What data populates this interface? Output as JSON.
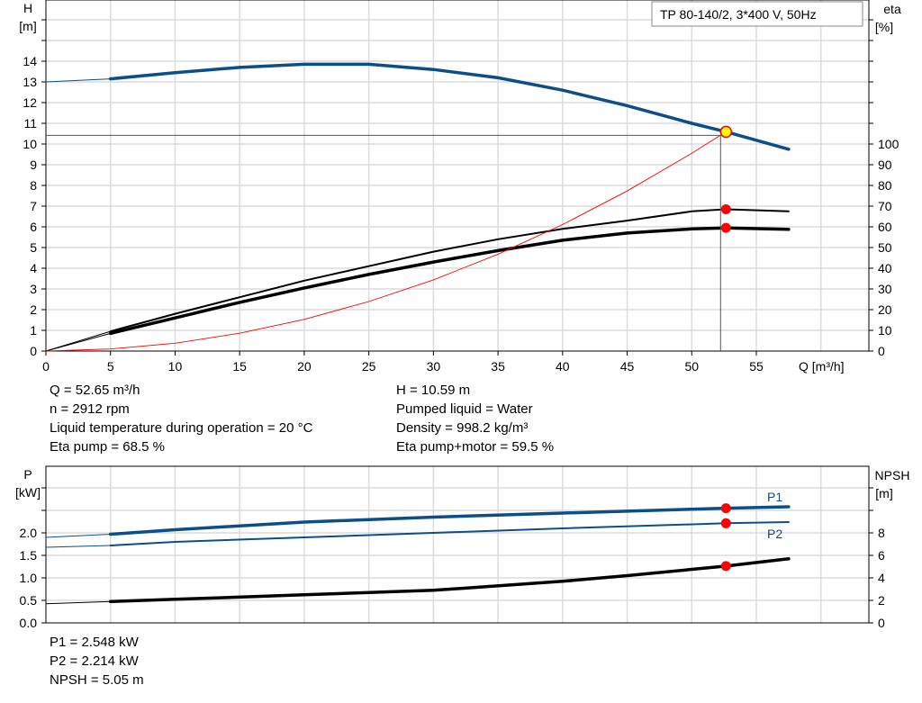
{
  "chart_data": [
    {
      "type": "line",
      "title": "TP 80-140/2, 3*400 V, 50Hz",
      "xlabel": "Q [m³/h]",
      "ylabel_left": [
        "H",
        "[m]"
      ],
      "ylabel_right": [
        "eta",
        "[%]"
      ],
      "xlim": [
        0,
        63
      ],
      "ylim_left": [
        0,
        17
      ],
      "ylim_right": [
        0,
        170
      ],
      "x_ticks": [
        "0",
        "5",
        "10",
        "15",
        "20",
        "25",
        "30",
        "35",
        "40",
        "45",
        "50",
        "55"
      ],
      "y_ticks_left": [
        "0",
        "1",
        "2",
        "3",
        "4",
        "5",
        "6",
        "7",
        "8",
        "9",
        "10",
        "11",
        "12",
        "13",
        "14"
      ],
      "y_ticks_right": [
        "0",
        "10",
        "20",
        "30",
        "40",
        "50",
        "60",
        "70",
        "80",
        "90",
        "100"
      ],
      "grid": true,
      "series": [
        {
          "axis": "left",
          "color": "#0b4f8a",
          "x": [
            0,
            5,
            10,
            15,
            20,
            25,
            30,
            35,
            40,
            45,
            50,
            52.65,
            57.5
          ],
          "y": [
            13.0,
            13.15,
            13.45,
            13.7,
            13.85,
            13.85,
            13.6,
            13.2,
            12.6,
            11.85,
            11.0,
            10.59,
            9.75
          ]
        },
        {
          "axis": "right",
          "color": "#000000",
          "x": [
            0,
            5,
            10,
            15,
            20,
            25,
            30,
            35,
            40,
            45,
            50,
            52.65,
            57.5
          ],
          "y": [
            0,
            9.5,
            18,
            26,
            34,
            41,
            48,
            54,
            59,
            63,
            67.5,
            68.5,
            67.5
          ]
        },
        {
          "axis": "right",
          "color": "#000000",
          "x": [
            0,
            5,
            10,
            15,
            20,
            25,
            30,
            35,
            40,
            45,
            50,
            52.65,
            57.5
          ],
          "y": [
            0,
            8.5,
            16,
            23.5,
            30.5,
            37,
            43,
            48.5,
            53.5,
            57,
            59,
            59.5,
            58.8
          ]
        },
        {
          "axis": "left",
          "color": "#ff0000",
          "x": [
            0,
            5,
            10,
            15,
            20,
            25,
            30,
            35,
            40,
            45,
            50,
            52.65
          ],
          "y": [
            0,
            0.1,
            0.38,
            0.86,
            1.53,
            2.39,
            3.44,
            4.68,
            6.11,
            7.73,
            9.55,
            10.59
          ]
        }
      ],
      "duty_point": {
        "q": 52.65,
        "h": 10.59,
        "eta_pump": 68.5,
        "eta_total": 59.5
      }
    },
    {
      "type": "line",
      "ylabel_left": [
        "P",
        "[kW]"
      ],
      "ylabel_right": [
        "NPSH",
        "[m]"
      ],
      "xlim": [
        0,
        63
      ],
      "ylim_left": [
        0,
        3.0
      ],
      "ylim_right": [
        0,
        12
      ],
      "y_ticks_left": [
        "0.0",
        "0.5",
        "1.0",
        "1.5",
        "2.0"
      ],
      "y_ticks_right": [
        "0",
        "2",
        "4",
        "6",
        "8"
      ],
      "grid": true,
      "series": [
        {
          "name": "P1",
          "axis": "left",
          "color": "#0b4f8a",
          "x": [
            0,
            5,
            10,
            20,
            30,
            40,
            52.65,
            57.5
          ],
          "y": [
            1.9,
            1.97,
            2.07,
            2.24,
            2.35,
            2.44,
            2.548,
            2.58
          ]
        },
        {
          "name": "P2",
          "axis": "left",
          "color": "#0b4f8a",
          "x": [
            0,
            5,
            10,
            20,
            30,
            40,
            52.65,
            57.5
          ],
          "y": [
            1.68,
            1.72,
            1.8,
            1.9,
            2.0,
            2.1,
            2.214,
            2.24
          ]
        },
        {
          "axis": "right",
          "color": "#000000",
          "x": [
            0,
            5,
            10,
            20,
            30,
            40,
            45,
            52.65,
            57.5
          ],
          "y": [
            1.7,
            1.9,
            2.1,
            2.5,
            2.9,
            3.7,
            4.2,
            5.05,
            5.7
          ]
        }
      ],
      "duty_point": {
        "q": 52.65,
        "p1": 2.548,
        "p2": 2.214,
        "npsh": 5.05
      }
    }
  ],
  "info": {
    "left": [
      "Q = 52.65 m³/h",
      "n = 2912 rpm",
      "Liquid temperature during operation = 20 °C",
      "Eta pump = 68.5 %"
    ],
    "right": [
      "H = 10.59 m",
      "Pumped liquid = Water",
      "Density = 998.2 kg/m³",
      "Eta pump+motor = 59.5 %"
    ],
    "bottom": [
      "P1 = 2.548 kW",
      "P2 = 2.214 kW",
      "NPSH = 5.05 m"
    ]
  }
}
